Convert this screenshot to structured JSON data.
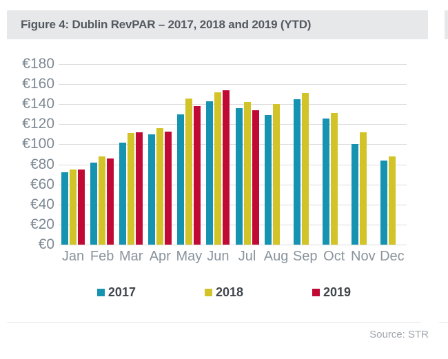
{
  "header": {
    "title": "Figure 4: Dublin RevPAR – 2017, 2018 and 2019 (YTD)"
  },
  "chart_data": {
    "type": "bar",
    "title": "Dublin RevPAR – 2017, 2018 and 2019 (YTD)",
    "categories": [
      "Jan",
      "Feb",
      "Mar",
      "Apr",
      "May",
      "Jun",
      "Jul",
      "Aug",
      "Sep",
      "Oct",
      "Nov",
      "Dec"
    ],
    "series": [
      {
        "name": "2017",
        "color": "#1693B0",
        "values": [
          72,
          82,
          102,
          110,
          130,
          143,
          136,
          129,
          145,
          126,
          100,
          84
        ]
      },
      {
        "name": "2018",
        "color": "#D2C428",
        "values": [
          75,
          88,
          111,
          116,
          146,
          152,
          142,
          140,
          151,
          131,
          112,
          88
        ]
      },
      {
        "name": "2019",
        "color": "#C00A35",
        "values": [
          75,
          86,
          112,
          113,
          138,
          154,
          134,
          null,
          null,
          null,
          null,
          null
        ]
      }
    ],
    "ylabel_prefix": "€",
    "ylim": [
      0,
      180
    ],
    "ytick_step": 20,
    "grid": "horizontal",
    "legend_position": "bottom"
  },
  "footer": {
    "source": "Source: STR"
  },
  "colors": {
    "header_bg": "#E6E8EA",
    "gridline": "#DBDBDB",
    "axis_text": "#7D8893",
    "title_text": "#54595F",
    "source_text": "#A0A6AD"
  }
}
